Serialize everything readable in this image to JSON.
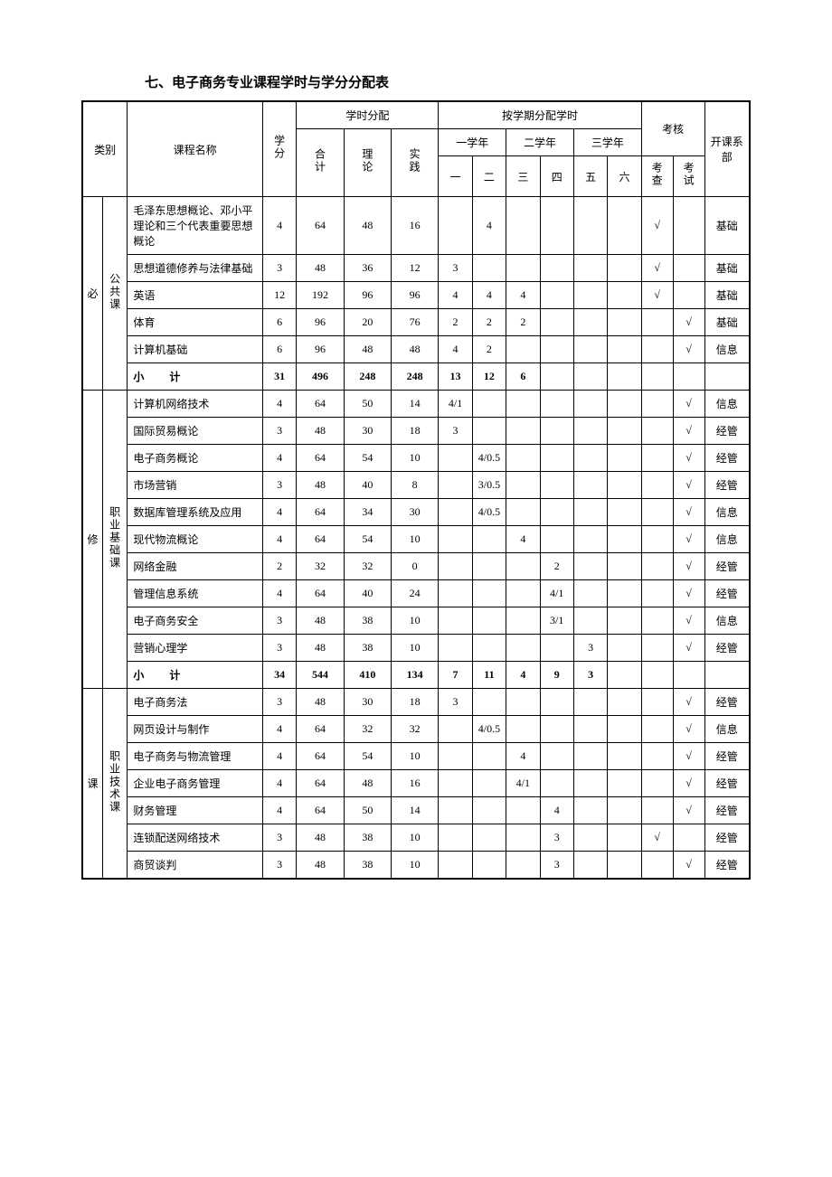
{
  "title": "七、电子商务专业课程学时与学分分配表",
  "headers": {
    "category": "类别",
    "course_name": "课程名称",
    "credit": "学分",
    "hours_dist": "学时分配",
    "total": "合计",
    "theory": "理论",
    "practice": "实践",
    "by_semester": "按学期分配学时",
    "year1": "一学年",
    "year2": "二学年",
    "year3": "三学年",
    "s1": "一",
    "s2": "二",
    "s3": "三",
    "s4": "四",
    "s5": "五",
    "s6": "六",
    "assessment": "考核",
    "check": "考查",
    "exam": "考试",
    "dept": "开课系部"
  },
  "cat_major": {
    "required": "必",
    "elective": "修",
    "course": "课"
  },
  "cat_sub": {
    "public": "公共课",
    "pro_base": "职业基础课",
    "pro_tech": "职业技术课"
  },
  "subtotal": "小计",
  "check_mark": "√",
  "rows": [
    {
      "name": "毛泽东思想概论、邓小平理论和三个代表重要思想概论",
      "credit": "4",
      "total": "64",
      "theory": "48",
      "practice": "16",
      "s1": "",
      "s2": "4",
      "s3": "",
      "s4": "",
      "s5": "",
      "s6": "",
      "check": "√",
      "exam": "",
      "dept": "基础"
    },
    {
      "name": "思想道德修养与法律基础",
      "credit": "3",
      "total": "48",
      "theory": "36",
      "practice": "12",
      "s1": "3",
      "s2": "",
      "s3": "",
      "s4": "",
      "s5": "",
      "s6": "",
      "check": "√",
      "exam": "",
      "dept": "基础"
    },
    {
      "name": "英语",
      "credit": "12",
      "total": "192",
      "theory": "96",
      "practice": "96",
      "s1": "4",
      "s2": "4",
      "s3": "4",
      "s4": "",
      "s5": "",
      "s6": "",
      "check": "√",
      "exam": "",
      "dept": "基础"
    },
    {
      "name": "体育",
      "credit": "6",
      "total": "96",
      "theory": "20",
      "practice": "76",
      "s1": "2",
      "s2": "2",
      "s3": "2",
      "s4": "",
      "s5": "",
      "s6": "",
      "check": "",
      "exam": "√",
      "dept": "基础"
    },
    {
      "name": "计算机基础",
      "credit": "6",
      "total": "96",
      "theory": "48",
      "practice": "48",
      "s1": "4",
      "s2": "2",
      "s3": "",
      "s4": "",
      "s5": "",
      "s6": "",
      "check": "",
      "exam": "√",
      "dept": "信息"
    }
  ],
  "subtotal1": {
    "credit": "31",
    "total": "496",
    "theory": "248",
    "practice": "248",
    "s1": "13",
    "s2": "12",
    "s3": "6",
    "s4": "",
    "s5": "",
    "s6": ""
  },
  "rows2": [
    {
      "name": "计算机网络技术",
      "credit": "4",
      "total": "64",
      "theory": "50",
      "practice": "14",
      "s1": "4/1",
      "s2": "",
      "s3": "",
      "s4": "",
      "s5": "",
      "s6": "",
      "check": "",
      "exam": "√",
      "dept": "信息"
    },
    {
      "name": "国际贸易概论",
      "credit": "3",
      "total": "48",
      "theory": "30",
      "practice": "18",
      "s1": "3",
      "s2": "",
      "s3": "",
      "s4": "",
      "s5": "",
      "s6": "",
      "check": "",
      "exam": "√",
      "dept": "经管"
    },
    {
      "name": "电子商务概论",
      "credit": "4",
      "total": "64",
      "theory": "54",
      "practice": "10",
      "s1": "",
      "s2": "4/0.5",
      "s3": "",
      "s4": "",
      "s5": "",
      "s6": "",
      "check": "",
      "exam": "√",
      "dept": "经管"
    },
    {
      "name": "市场营销",
      "credit": "3",
      "total": "48",
      "theory": "40",
      "practice": "8",
      "s1": "",
      "s2": "3/0.5",
      "s3": "",
      "s4": "",
      "s5": "",
      "s6": "",
      "check": "",
      "exam": "√",
      "dept": "经管"
    },
    {
      "name": "数据库管理系统及应用",
      "credit": "4",
      "total": "64",
      "theory": "34",
      "practice": "30",
      "s1": "",
      "s2": "4/0.5",
      "s3": "",
      "s4": "",
      "s5": "",
      "s6": "",
      "check": "",
      "exam": "√",
      "dept": "信息"
    },
    {
      "name": "现代物流概论",
      "credit": "4",
      "total": "64",
      "theory": "54",
      "practice": "10",
      "s1": "",
      "s2": "",
      "s3": "4",
      "s4": "",
      "s5": "",
      "s6": "",
      "check": "",
      "exam": "√",
      "dept": "信息"
    },
    {
      "name": "网络金融",
      "credit": "2",
      "total": "32",
      "theory": "32",
      "practice": "0",
      "s1": "",
      "s2": "",
      "s3": "",
      "s4": "2",
      "s5": "",
      "s6": "",
      "check": "",
      "exam": "√",
      "dept": "经管"
    },
    {
      "name": "管理信息系统",
      "credit": "4",
      "total": "64",
      "theory": "40",
      "practice": "24",
      "s1": "",
      "s2": "",
      "s3": "",
      "s4": "4/1",
      "s5": "",
      "s6": "",
      "check": "",
      "exam": "√",
      "dept": "经管"
    },
    {
      "name": "电子商务安全",
      "credit": "3",
      "total": "48",
      "theory": "38",
      "practice": "10",
      "s1": "",
      "s2": "",
      "s3": "",
      "s4": "3/1",
      "s5": "",
      "s6": "",
      "check": "",
      "exam": "√",
      "dept": "信息"
    },
    {
      "name": "营销心理学",
      "credit": "3",
      "total": "48",
      "theory": "38",
      "practice": "10",
      "s1": "",
      "s2": "",
      "s3": "",
      "s4": "",
      "s5": "3",
      "s6": "",
      "check": "",
      "exam": "√",
      "dept": "经管"
    }
  ],
  "subtotal2": {
    "credit": "34",
    "total": "544",
    "theory": "410",
    "practice": "134",
    "s1": "7",
    "s2": "11",
    "s3": "4",
    "s4": "9",
    "s5": "3",
    "s6": ""
  },
  "rows3": [
    {
      "name": "电子商务法",
      "credit": "3",
      "total": "48",
      "theory": "30",
      "practice": "18",
      "s1": "3",
      "s2": "",
      "s3": "",
      "s4": "",
      "s5": "",
      "s6": "",
      "check": "",
      "exam": "√",
      "dept": "经管"
    },
    {
      "name": "网页设计与制作",
      "credit": "4",
      "total": "64",
      "theory": "32",
      "practice": "32",
      "s1": "",
      "s2": "4/0.5",
      "s3": "",
      "s4": "",
      "s5": "",
      "s6": "",
      "check": "",
      "exam": "√",
      "dept": "信息"
    },
    {
      "name": "电子商务与物流管理",
      "credit": "4",
      "total": "64",
      "theory": "54",
      "practice": "10",
      "s1": "",
      "s2": "",
      "s3": "4",
      "s4": "",
      "s5": "",
      "s6": "",
      "check": "",
      "exam": "√",
      "dept": "经管"
    },
    {
      "name": "企业电子商务管理",
      "credit": "4",
      "total": "64",
      "theory": "48",
      "practice": "16",
      "s1": "",
      "s2": "",
      "s3": "4/1",
      "s4": "",
      "s5": "",
      "s6": "",
      "check": "",
      "exam": "√",
      "dept": "经管"
    },
    {
      "name": "财务管理",
      "credit": "4",
      "total": "64",
      "theory": "50",
      "practice": "14",
      "s1": "",
      "s2": "",
      "s3": "",
      "s4": "4",
      "s5": "",
      "s6": "",
      "check": "",
      "exam": "√",
      "dept": "经管"
    },
    {
      "name": "连锁配送网络技术",
      "credit": "3",
      "total": "48",
      "theory": "38",
      "practice": "10",
      "s1": "",
      "s2": "",
      "s3": "",
      "s4": "3",
      "s5": "",
      "s6": "",
      "check": "√",
      "exam": "",
      "dept": "经管"
    },
    {
      "name": "商贸谈判",
      "credit": "3",
      "total": "48",
      "theory": "38",
      "practice": "10",
      "s1": "",
      "s2": "",
      "s3": "",
      "s4": "3",
      "s5": "",
      "s6": "",
      "check": "",
      "exam": "√",
      "dept": "经管"
    }
  ]
}
